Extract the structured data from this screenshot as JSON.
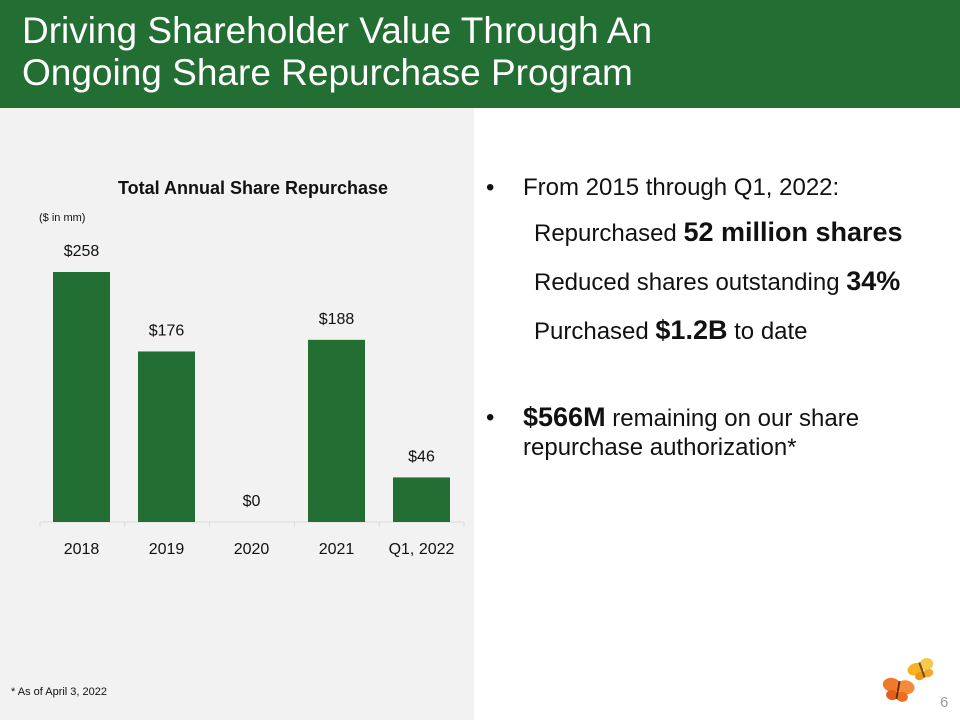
{
  "slide": {
    "title_line1": "Driving Shareholder Value Through An",
    "title_line2": "Ongoing Share Repurchase Program",
    "page_number": "6",
    "footnote": "* As of April 3, 2022"
  },
  "bullets": {
    "b1_text": "From 2015 through Q1, 2022:",
    "subs": [
      {
        "pre": "Repurchased ",
        "bold": "52 million shares",
        "post": ""
      },
      {
        "pre": "Reduced shares outstanding ",
        "bold": "34%",
        "post": ""
      },
      {
        "pre": "Purchased ",
        "bold": "$1.2B",
        "post": " to date"
      }
    ],
    "b2_bold": "$566M",
    "b2_text": " remaining on our share repurchase authorization*",
    "bullet_char": "•"
  },
  "chart_data": {
    "type": "bar",
    "title": "Total Annual Share Repurchase",
    "unit_note": "($ in mm)",
    "categories": [
      "2018",
      "2019",
      "2020",
      "2021",
      "Q1, 2022"
    ],
    "values": [
      258,
      176,
      0,
      188,
      46
    ],
    "value_labels": [
      "$258",
      "$176",
      "$0",
      "$188",
      "$46"
    ],
    "ylim": [
      0,
      258
    ],
    "grid": false,
    "bar_color": "#236f33"
  },
  "colors": {
    "header_green": "#236f33",
    "panel_gray": "#f2f2f2"
  }
}
